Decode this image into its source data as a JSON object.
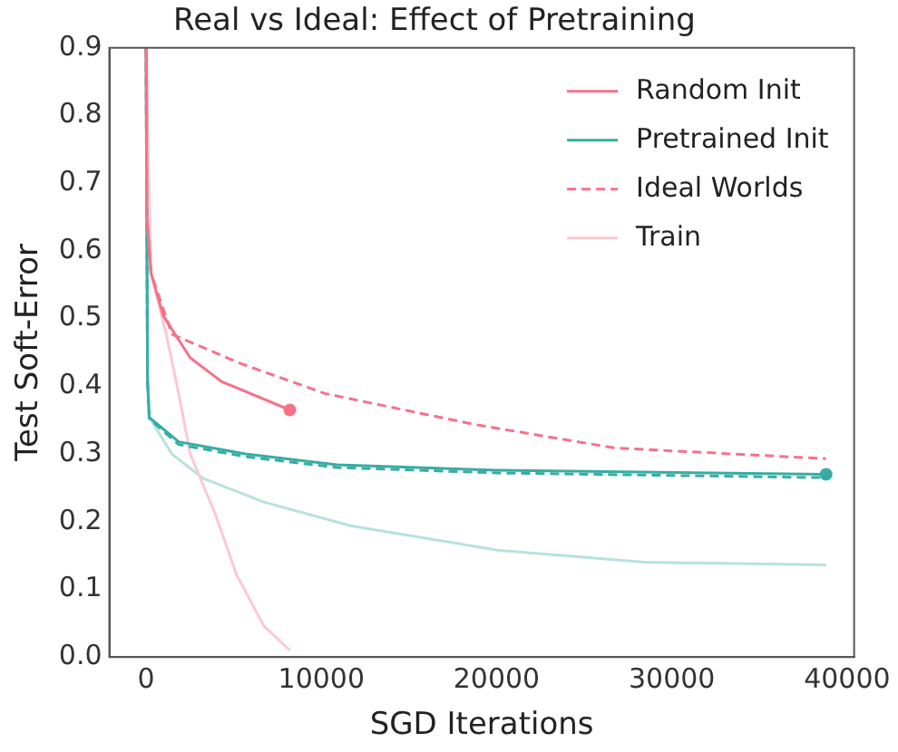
{
  "chart_data": {
    "type": "line",
    "title": "Real vs Ideal: Effect of Pretraining",
    "xlabel": "SGD Iterations",
    "ylabel": "Test Soft-Error",
    "xlim": [
      -2100,
      40400
    ],
    "ylim": [
      0,
      0.9
    ],
    "xticks": [
      0,
      10000,
      20000,
      30000,
      40000
    ],
    "yticks": [
      {
        "value": 0,
        "label": "0.0"
      },
      0.1,
      0.2,
      0.3,
      0.4,
      0.5,
      0.6,
      0.7,
      0.8,
      0.9
    ],
    "grid": false,
    "legend": "top right",
    "marker": "none",
    "series": [
      {
        "name": "Random Init",
        "color": "#f77189",
        "x": [
          0,
          30,
          280,
          980,
          2520,
          4300,
          8200
        ],
        "values": [
          0.9,
          0.655,
          0.567,
          0.504,
          0.442,
          0.407,
          0.365
        ]
      },
      {
        "name": "Pretrained Init",
        "color": "#36ada4",
        "x": [
          0,
          80,
          180,
          1860,
          5670,
          10900,
          20050,
          38800
        ],
        "values": [
          0.9,
          0.407,
          0.354,
          0.318,
          0.3,
          0.284,
          0.276,
          0.27
        ]
      },
      {
        "name": "Ideal Worlds",
        "color": "#f77189",
        "line_style": "dashed",
        "x": [
          0,
          30,
          280,
          1470,
          5350,
          10250,
          18650,
          26700,
          38800
        ],
        "values": [
          0.9,
          0.655,
          0.567,
          0.477,
          0.434,
          0.389,
          0.344,
          0.309,
          0.293
        ]
      },
      {
        "color": "#36ada4",
        "line_style": "dashed",
        "x": [
          0,
          80,
          180,
          1860,
          5670,
          10900,
          20050,
          38800
        ],
        "values": [
          0.9,
          0.407,
          0.352,
          0.314,
          0.296,
          0.28,
          0.272,
          0.265
        ]
      },
      {
        "name": "Train",
        "color": "#fcc9d2",
        "x": [
          0,
          280,
          1150,
          1860,
          2520,
          3950,
          5150,
          6720,
          8200
        ],
        "values": [
          0.9,
          0.567,
          0.477,
          0.389,
          0.3,
          0.211,
          0.122,
          0.046,
          0.01
        ]
      },
      {
        "color": "#b7e2de",
        "x": [
          0,
          80,
          180,
          1470,
          3250,
          6720,
          11650,
          20050,
          28450,
          38800
        ],
        "values": [
          0.9,
          0.42,
          0.354,
          0.3,
          0.264,
          0.229,
          0.194,
          0.158,
          0.14,
          0.136
        ]
      },
      {
        "type": "scatter",
        "marker": "circle",
        "color": "#f77189",
        "x": [
          8200
        ],
        "values": [
          0.365
        ]
      },
      {
        "type": "scatter",
        "marker": "circle",
        "color": "#36ada4",
        "x": [
          38800
        ],
        "values": [
          0.27
        ]
      }
    ]
  }
}
